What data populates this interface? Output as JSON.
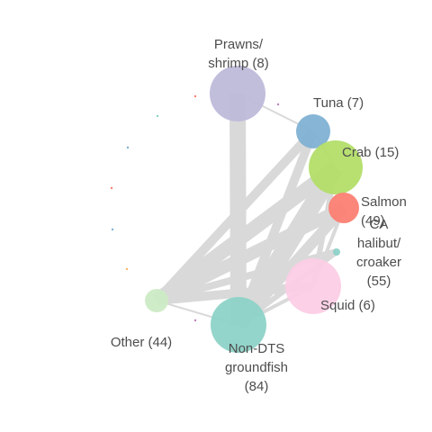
{
  "diagram": {
    "nodes": [
      {
        "id": "prawns",
        "label_lines": [
          "Prawns/",
          "shrimp (8)"
        ],
        "color": "#bebada"
      },
      {
        "id": "tuna",
        "label_lines": [
          "Tuna (7)"
        ],
        "color": "#80b1d3"
      },
      {
        "id": "crab",
        "label_lines": [
          "Crab (15)"
        ],
        "color": "#b3de69"
      },
      {
        "id": "salmon",
        "label_lines": [
          "Salmon",
          "(49)"
        ],
        "color": "#fb8072"
      },
      {
        "id": "halibut",
        "label_lines": [
          "CA",
          "halibut/",
          "croaker",
          "(55)"
        ],
        "color": "#8dd3c7"
      },
      {
        "id": "squid",
        "label_lines": [
          "Squid (6)"
        ],
        "color": "#fccde5"
      },
      {
        "id": "nondts",
        "label_lines": [
          "Non-DTS",
          "groundfish",
          "(84)"
        ],
        "color": "#8dd3c7"
      },
      {
        "id": "other",
        "label_lines": [
          "Other (44)"
        ],
        "color": "#ccebc5"
      }
    ],
    "edge_color": "#d9d9d9",
    "edges": [
      {
        "from": "prawns",
        "to": "nondts",
        "weight": 9
      },
      {
        "from": "nondts",
        "to": "crab",
        "weight": 10
      },
      {
        "from": "other",
        "to": "crab",
        "weight": 8
      },
      {
        "from": "other",
        "to": "tuna",
        "weight": 5
      },
      {
        "from": "other",
        "to": "salmon",
        "weight": 7
      },
      {
        "from": "nondts",
        "to": "salmon",
        "weight": 6
      },
      {
        "from": "other",
        "to": "halibut",
        "weight": 4
      },
      {
        "from": "other",
        "to": "squid",
        "weight": 5
      },
      {
        "from": "nondts",
        "to": "tuna",
        "weight": 5
      },
      {
        "from": "nondts",
        "to": "halibut",
        "weight": 3
      },
      {
        "from": "squid",
        "to": "crab",
        "weight": 3
      },
      {
        "from": "nondts",
        "to": "squid",
        "weight": 2
      },
      {
        "from": "other",
        "to": "nondts",
        "weight": 1
      },
      {
        "from": "prawns",
        "to": "tuna",
        "weight": 1
      },
      {
        "from": "salmon",
        "to": "squid",
        "weight": 2
      },
      {
        "from": "tuna",
        "to": "crab",
        "weight": 1
      }
    ],
    "minor_nodes": [
      {
        "id": "m1",
        "color": "#fb8072"
      },
      {
        "id": "m2",
        "color": "#8dd3c7"
      },
      {
        "id": "m3",
        "color": "#80b1d3"
      },
      {
        "id": "m4",
        "color": "#fb8072"
      },
      {
        "id": "m5",
        "color": "#80b1d3"
      },
      {
        "id": "m6",
        "color": "#fdb462"
      },
      {
        "id": "m7",
        "color": "#bc80bd"
      },
      {
        "id": "m8",
        "color": "#bc80bd"
      }
    ]
  }
}
